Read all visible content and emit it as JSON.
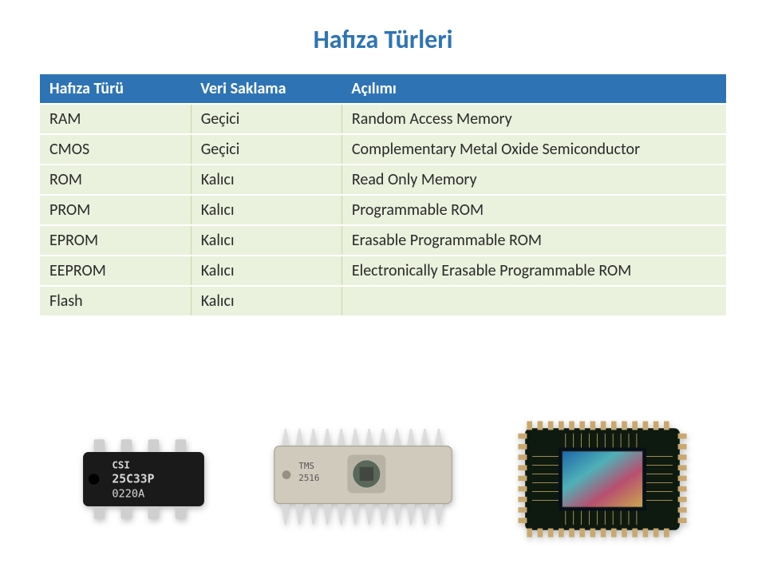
{
  "title": "Hafıza Türleri",
  "title_color": "#2e74b5",
  "table": {
    "header_bg": "#2e74b5",
    "header_text_color": "#ffffff",
    "row_bg": "#eaf1dd",
    "row_border": "#ffffff",
    "cell_divider": "#c5d8a4",
    "text_color": "#2a2a2a",
    "col_widths": [
      "22%",
      "22%",
      "56%"
    ],
    "fontsize": 20,
    "columns": [
      "Hafıza Türü",
      "Veri Saklama",
      "Açılımı"
    ],
    "rows": [
      [
        "RAM",
        "Geçici",
        "Random Access Memory"
      ],
      [
        "CMOS",
        "Geçici",
        "Complementary Metal Oxide Semiconductor"
      ],
      [
        "ROM",
        "Kalıcı",
        "Read Only Memory"
      ],
      [
        "PROM",
        "Kalıcı",
        "Programmable ROM"
      ],
      [
        "EPROM",
        "Kalıcı",
        "Erasable Programmable ROM"
      ],
      [
        "EEPROM",
        "Kalıcı",
        "Electronically Erasable Programmable ROM"
      ],
      [
        "Flash",
        "Kalıcı",
        ""
      ]
    ]
  },
  "chips": {
    "dip8": {
      "body_color": "#1a1a1a",
      "text_color": "#d6d6d6",
      "pin_color": "#cfcfcf",
      "label_top": "CSI",
      "label_mid": "25C33P",
      "label_bot": "0220A"
    },
    "ceramic": {
      "body_color": "#d0cabd",
      "window_color": "#5a685a",
      "pin_color": "#d9d9d9",
      "label": "TMS\n2516"
    },
    "bga": {
      "pcb_color": "#0e1a10",
      "die_colors": [
        "#1e66a8",
        "#4fb0b8",
        "#b84f6f",
        "#caa84d"
      ],
      "pad_color": "#c9a870"
    }
  }
}
